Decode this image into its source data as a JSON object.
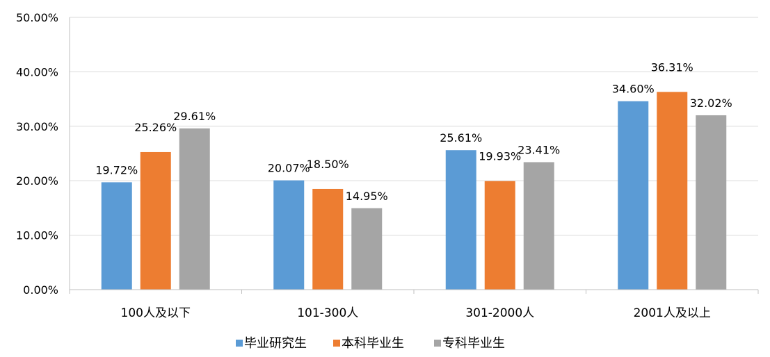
{
  "chart_data": {
    "type": "bar",
    "categories": [
      "100人及以下",
      "101-300人",
      "301-2000人",
      "2001人及以上"
    ],
    "series": [
      {
        "name": "毕业研究生",
        "values": [
          19.72,
          20.07,
          25.61,
          34.6
        ],
        "labels": [
          "19.72%",
          "20.07%",
          "25.61%",
          "34.60%"
        ],
        "color": "#5B9BD5"
      },
      {
        "name": "本科毕业生",
        "values": [
          25.26,
          18.5,
          19.93,
          36.31
        ],
        "labels": [
          "25.26%",
          "18.50%",
          "19.93%",
          "36.31%"
        ],
        "color": "#ED7D31"
      },
      {
        "name": "专科毕业生",
        "values": [
          29.61,
          14.95,
          23.41,
          32.02
        ],
        "labels": [
          "29.61%",
          "14.95%",
          "23.41%",
          "32.02%"
        ],
        "color": "#A5A5A5"
      }
    ],
    "ylim": [
      0,
      50
    ],
    "yticks": [
      "0.00%",
      "10.00%",
      "20.00%",
      "30.00%",
      "40.00%",
      "50.00%"
    ],
    "title": "",
    "xlabel": "",
    "ylabel": "",
    "grid": true,
    "legend": "bottom"
  }
}
